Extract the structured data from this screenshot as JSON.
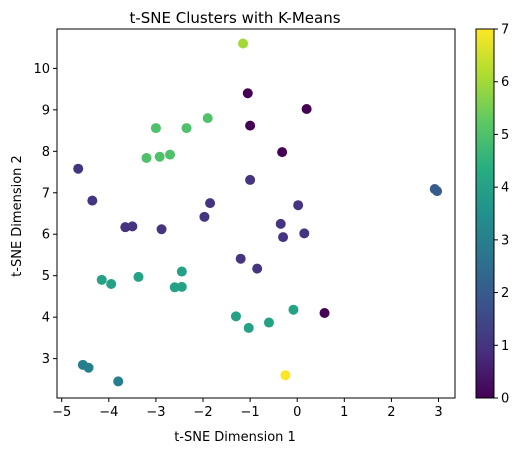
{
  "chart_data": {
    "type": "scatter",
    "title": "t-SNE Clusters with K-Means",
    "xlabel": "t-SNE Dimension 1",
    "ylabel": "t-SNE Dimension 2",
    "xlim": [
      -5.1,
      3.35
    ],
    "ylim": [
      2.05,
      10.95
    ],
    "xticks": [
      -5,
      -4,
      -3,
      -2,
      -1,
      0,
      1,
      2,
      3
    ],
    "yticks": [
      3,
      4,
      5,
      6,
      7,
      8,
      9,
      10
    ],
    "grid": false,
    "colormap": "viridis",
    "colorbar": {
      "range": [
        0,
        7
      ],
      "ticks": [
        0,
        1,
        2,
        3,
        4,
        5,
        6,
        7
      ]
    },
    "points": [
      {
        "x": -1.15,
        "y": 10.6,
        "cluster": 6
      },
      {
        "x": -1.05,
        "y": 9.4,
        "cluster": 0
      },
      {
        "x": 0.2,
        "y": 9.02,
        "cluster": 0
      },
      {
        "x": -1.0,
        "y": 8.62,
        "cluster": 0
      },
      {
        "x": -0.32,
        "y": 7.98,
        "cluster": 0
      },
      {
        "x": 0.58,
        "y": 4.1,
        "cluster": 0
      },
      {
        "x": -1.9,
        "y": 8.8,
        "cluster": 5
      },
      {
        "x": -3.0,
        "y": 8.56,
        "cluster": 5
      },
      {
        "x": -2.35,
        "y": 8.56,
        "cluster": 5
      },
      {
        "x": -2.92,
        "y": 7.87,
        "cluster": 5
      },
      {
        "x": -2.7,
        "y": 7.92,
        "cluster": 5
      },
      {
        "x": -3.2,
        "y": 7.84,
        "cluster": 5
      },
      {
        "x": -4.65,
        "y": 7.58,
        "cluster": 1
      },
      {
        "x": -4.35,
        "y": 6.81,
        "cluster": 1
      },
      {
        "x": -1.0,
        "y": 7.31,
        "cluster": 1
      },
      {
        "x": -1.85,
        "y": 6.75,
        "cluster": 1
      },
      {
        "x": 0.02,
        "y": 6.7,
        "cluster": 1
      },
      {
        "x": -1.97,
        "y": 6.42,
        "cluster": 1
      },
      {
        "x": -3.65,
        "y": 6.17,
        "cluster": 1
      },
      {
        "x": -3.5,
        "y": 6.19,
        "cluster": 1
      },
      {
        "x": -2.88,
        "y": 6.12,
        "cluster": 1
      },
      {
        "x": -0.35,
        "y": 6.25,
        "cluster": 1
      },
      {
        "x": 0.15,
        "y": 6.02,
        "cluster": 1
      },
      {
        "x": -0.3,
        "y": 5.93,
        "cluster": 1
      },
      {
        "x": -1.2,
        "y": 5.41,
        "cluster": 1
      },
      {
        "x": -0.85,
        "y": 5.17,
        "cluster": 1
      },
      {
        "x": 2.92,
        "y": 7.09,
        "cluster": 2
      },
      {
        "x": 2.97,
        "y": 7.04,
        "cluster": 2
      },
      {
        "x": -4.55,
        "y": 2.85,
        "cluster": 3
      },
      {
        "x": -4.43,
        "y": 2.78,
        "cluster": 3
      },
      {
        "x": -3.8,
        "y": 2.45,
        "cluster": 3
      },
      {
        "x": -3.37,
        "y": 4.97,
        "cluster": 4
      },
      {
        "x": -2.45,
        "y": 5.1,
        "cluster": 4
      },
      {
        "x": -4.15,
        "y": 4.9,
        "cluster": 4
      },
      {
        "x": -3.95,
        "y": 4.8,
        "cluster": 4
      },
      {
        "x": -2.6,
        "y": 4.72,
        "cluster": 4
      },
      {
        "x": -2.45,
        "y": 4.73,
        "cluster": 4
      },
      {
        "x": -1.3,
        "y": 4.02,
        "cluster": 4
      },
      {
        "x": -0.6,
        "y": 3.87,
        "cluster": 4
      },
      {
        "x": -0.08,
        "y": 4.18,
        "cluster": 4
      },
      {
        "x": -1.03,
        "y": 3.74,
        "cluster": 4
      },
      {
        "x": -0.25,
        "y": 2.6,
        "cluster": 7
      }
    ]
  }
}
